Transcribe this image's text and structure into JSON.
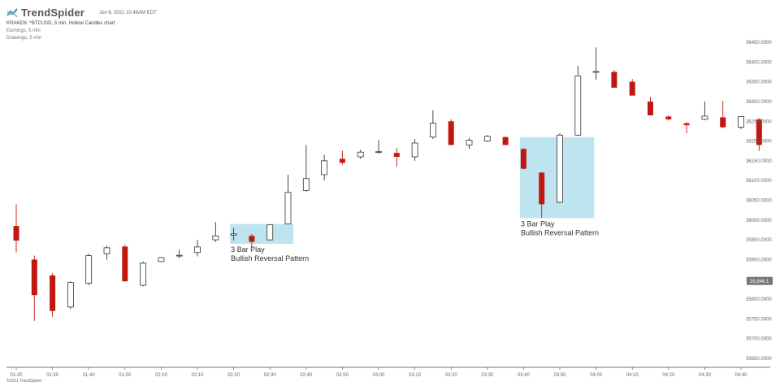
{
  "header": {
    "brand": "TrendSpider",
    "date": "Jun 6, 2021 10:46AM EDT",
    "symbol_line": "KRAKEN: ^BTCUSD, 5 min, Hollow Candles chart",
    "earnings": "Earnings, 5 min",
    "drawings": "Drawings, 5 min"
  },
  "footer": {
    "copyright": "©2021 TrendSpider"
  },
  "colors": {
    "up": "#333333",
    "down": "#c0180f",
    "box": "#bde4ef",
    "tag": "#777777"
  },
  "chart_data": {
    "type": "candlestick",
    "style": "hollow",
    "ylim": [
      35625,
      36460
    ],
    "ytick_labels": [
      "36450.0000",
      "36400.0000",
      "36350.0000",
      "36300.0000",
      "36250.0000",
      "36200.0000",
      "36150.0000",
      "36100.0000",
      "36050.0000",
      "36000.0000",
      "35950.0000",
      "35900.0000",
      "35850.0000",
      "35800.0000",
      "35750.0000",
      "35700.0000",
      "35650.0000"
    ],
    "yticks": [
      36450,
      36400,
      36350,
      36300,
      36250,
      36200,
      36150,
      36100,
      36050,
      36000,
      35950,
      35900,
      35850,
      35800,
      35750,
      35700,
      35650
    ],
    "xtick_labels": [
      "01:20",
      "01:30",
      "01:40",
      "01:50",
      "02:00",
      "02:10",
      "02:20",
      "02:30",
      "02:40",
      "02:50",
      "03:00",
      "03:10",
      "03:20",
      "03:30",
      "03:40",
      "03:50",
      "04:00",
      "04:10",
      "04:20",
      "04:30",
      "04:40"
    ],
    "xticks": [
      0,
      2,
      4,
      6,
      8,
      10,
      12,
      14,
      16,
      18,
      20,
      22,
      24,
      26,
      28,
      30,
      32,
      34,
      36,
      38,
      40
    ],
    "last_price": "35,846.1",
    "last_value": 35846,
    "candles": [
      {
        "i": 0,
        "o": 35985,
        "h": 36040,
        "l": 35918,
        "c": 35948
      },
      {
        "i": 1,
        "o": 35900,
        "h": 35910,
        "l": 35745,
        "c": 35810
      },
      {
        "i": 2,
        "o": 35860,
        "h": 35866,
        "l": 35755,
        "c": 35770
      },
      {
        "i": 3,
        "o": 35780,
        "h": 35845,
        "l": 35775,
        "c": 35842
      },
      {
        "i": 4,
        "o": 35840,
        "h": 35915,
        "l": 35835,
        "c": 35910
      },
      {
        "i": 5,
        "o": 35915,
        "h": 35935,
        "l": 35900,
        "c": 35930
      },
      {
        "i": 6,
        "o": 35933,
        "h": 35938,
        "l": 35845,
        "c": 35845
      },
      {
        "i": 7,
        "o": 35835,
        "h": 35895,
        "l": 35832,
        "c": 35891
      },
      {
        "i": 8,
        "o": 35895,
        "h": 35906,
        "l": 35894,
        "c": 35905
      },
      {
        "i": 9,
        "o": 35910,
        "h": 35925,
        "l": 35903,
        "c": 35911
      },
      {
        "i": 10,
        "o": 35918,
        "h": 35950,
        "l": 35908,
        "c": 35932
      },
      {
        "i": 11,
        "o": 35950,
        "h": 35995,
        "l": 35945,
        "c": 35960
      },
      {
        "i": 12,
        "o": 35962,
        "h": 35980,
        "l": 35948,
        "c": 35965
      },
      {
        "i": 13,
        "o": 35960,
        "h": 35965,
        "l": 35930,
        "c": 35945
      },
      {
        "i": 14,
        "o": 35950,
        "h": 35988,
        "l": 35948,
        "c": 35988
      },
      {
        "i": 15,
        "o": 35990,
        "h": 36115,
        "l": 35990,
        "c": 36070
      },
      {
        "i": 16,
        "o": 36075,
        "h": 36190,
        "l": 36072,
        "c": 36105
      },
      {
        "i": 17,
        "o": 36115,
        "h": 36165,
        "l": 36100,
        "c": 36150
      },
      {
        "i": 18,
        "o": 36155,
        "h": 36175,
        "l": 36140,
        "c": 36145
      },
      {
        "i": 19,
        "o": 36160,
        "h": 36178,
        "l": 36155,
        "c": 36172
      },
      {
        "i": 20,
        "o": 36172,
        "h": 36202,
        "l": 36168,
        "c": 36173
      },
      {
        "i": 21,
        "o": 36170,
        "h": 36182,
        "l": 36135,
        "c": 36160
      },
      {
        "i": 22,
        "o": 36160,
        "h": 36205,
        "l": 36150,
        "c": 36195
      },
      {
        "i": 23,
        "o": 36210,
        "h": 36278,
        "l": 36205,
        "c": 36245
      },
      {
        "i": 24,
        "o": 36250,
        "h": 36255,
        "l": 36190,
        "c": 36190
      },
      {
        "i": 25,
        "o": 36190,
        "h": 36208,
        "l": 36180,
        "c": 36202
      },
      {
        "i": 26,
        "o": 36200,
        "h": 36215,
        "l": 36198,
        "c": 36212
      },
      {
        "i": 27,
        "o": 36210,
        "h": 36212,
        "l": 36190,
        "c": 36190
      },
      {
        "i": 28,
        "o": 36180,
        "h": 36182,
        "l": 36128,
        "c": 36130
      },
      {
        "i": 29,
        "o": 36120,
        "h": 36122,
        "l": 36005,
        "c": 36040
      },
      {
        "i": 30,
        "o": 36045,
        "h": 36220,
        "l": 36043,
        "c": 36215
      },
      {
        "i": 31,
        "o": 36215,
        "h": 36390,
        "l": 36213,
        "c": 36365
      },
      {
        "i": 32,
        "o": 36375,
        "h": 36437,
        "l": 36355,
        "c": 36376
      },
      {
        "i": 33,
        "o": 36375,
        "h": 36380,
        "l": 36335,
        "c": 36335
      },
      {
        "i": 34,
        "o": 36350,
        "h": 36357,
        "l": 36315,
        "c": 36315
      },
      {
        "i": 35,
        "o": 36300,
        "h": 36312,
        "l": 36265,
        "c": 36265
      },
      {
        "i": 36,
        "o": 36262,
        "h": 36265,
        "l": 36252,
        "c": 36255
      },
      {
        "i": 37,
        "o": 36245,
        "h": 36248,
        "l": 36220,
        "c": 36240
      },
      {
        "i": 38,
        "o": 36255,
        "h": 36300,
        "l": 36253,
        "c": 36263
      },
      {
        "i": 39,
        "o": 36260,
        "h": 36302,
        "l": 36232,
        "c": 36235
      },
      {
        "i": 40,
        "o": 36235,
        "h": 36263,
        "l": 36230,
        "c": 36262
      },
      {
        "i": 41,
        "o": 36255,
        "h": 36258,
        "l": 36175,
        "c": 36190
      }
    ],
    "annotations": [
      {
        "i0": 11.8,
        "i1": 15.3,
        "y0": 35990,
        "y1": 35940,
        "line1": "3 Bar Play",
        "line2": "Bullish Reversal Pattern"
      },
      {
        "i0": 27.8,
        "i1": 31.9,
        "y0": 36210,
        "y1": 36005,
        "line1": "3 Bar Play",
        "line2": "Bullish Reversal Pattern"
      }
    ]
  }
}
